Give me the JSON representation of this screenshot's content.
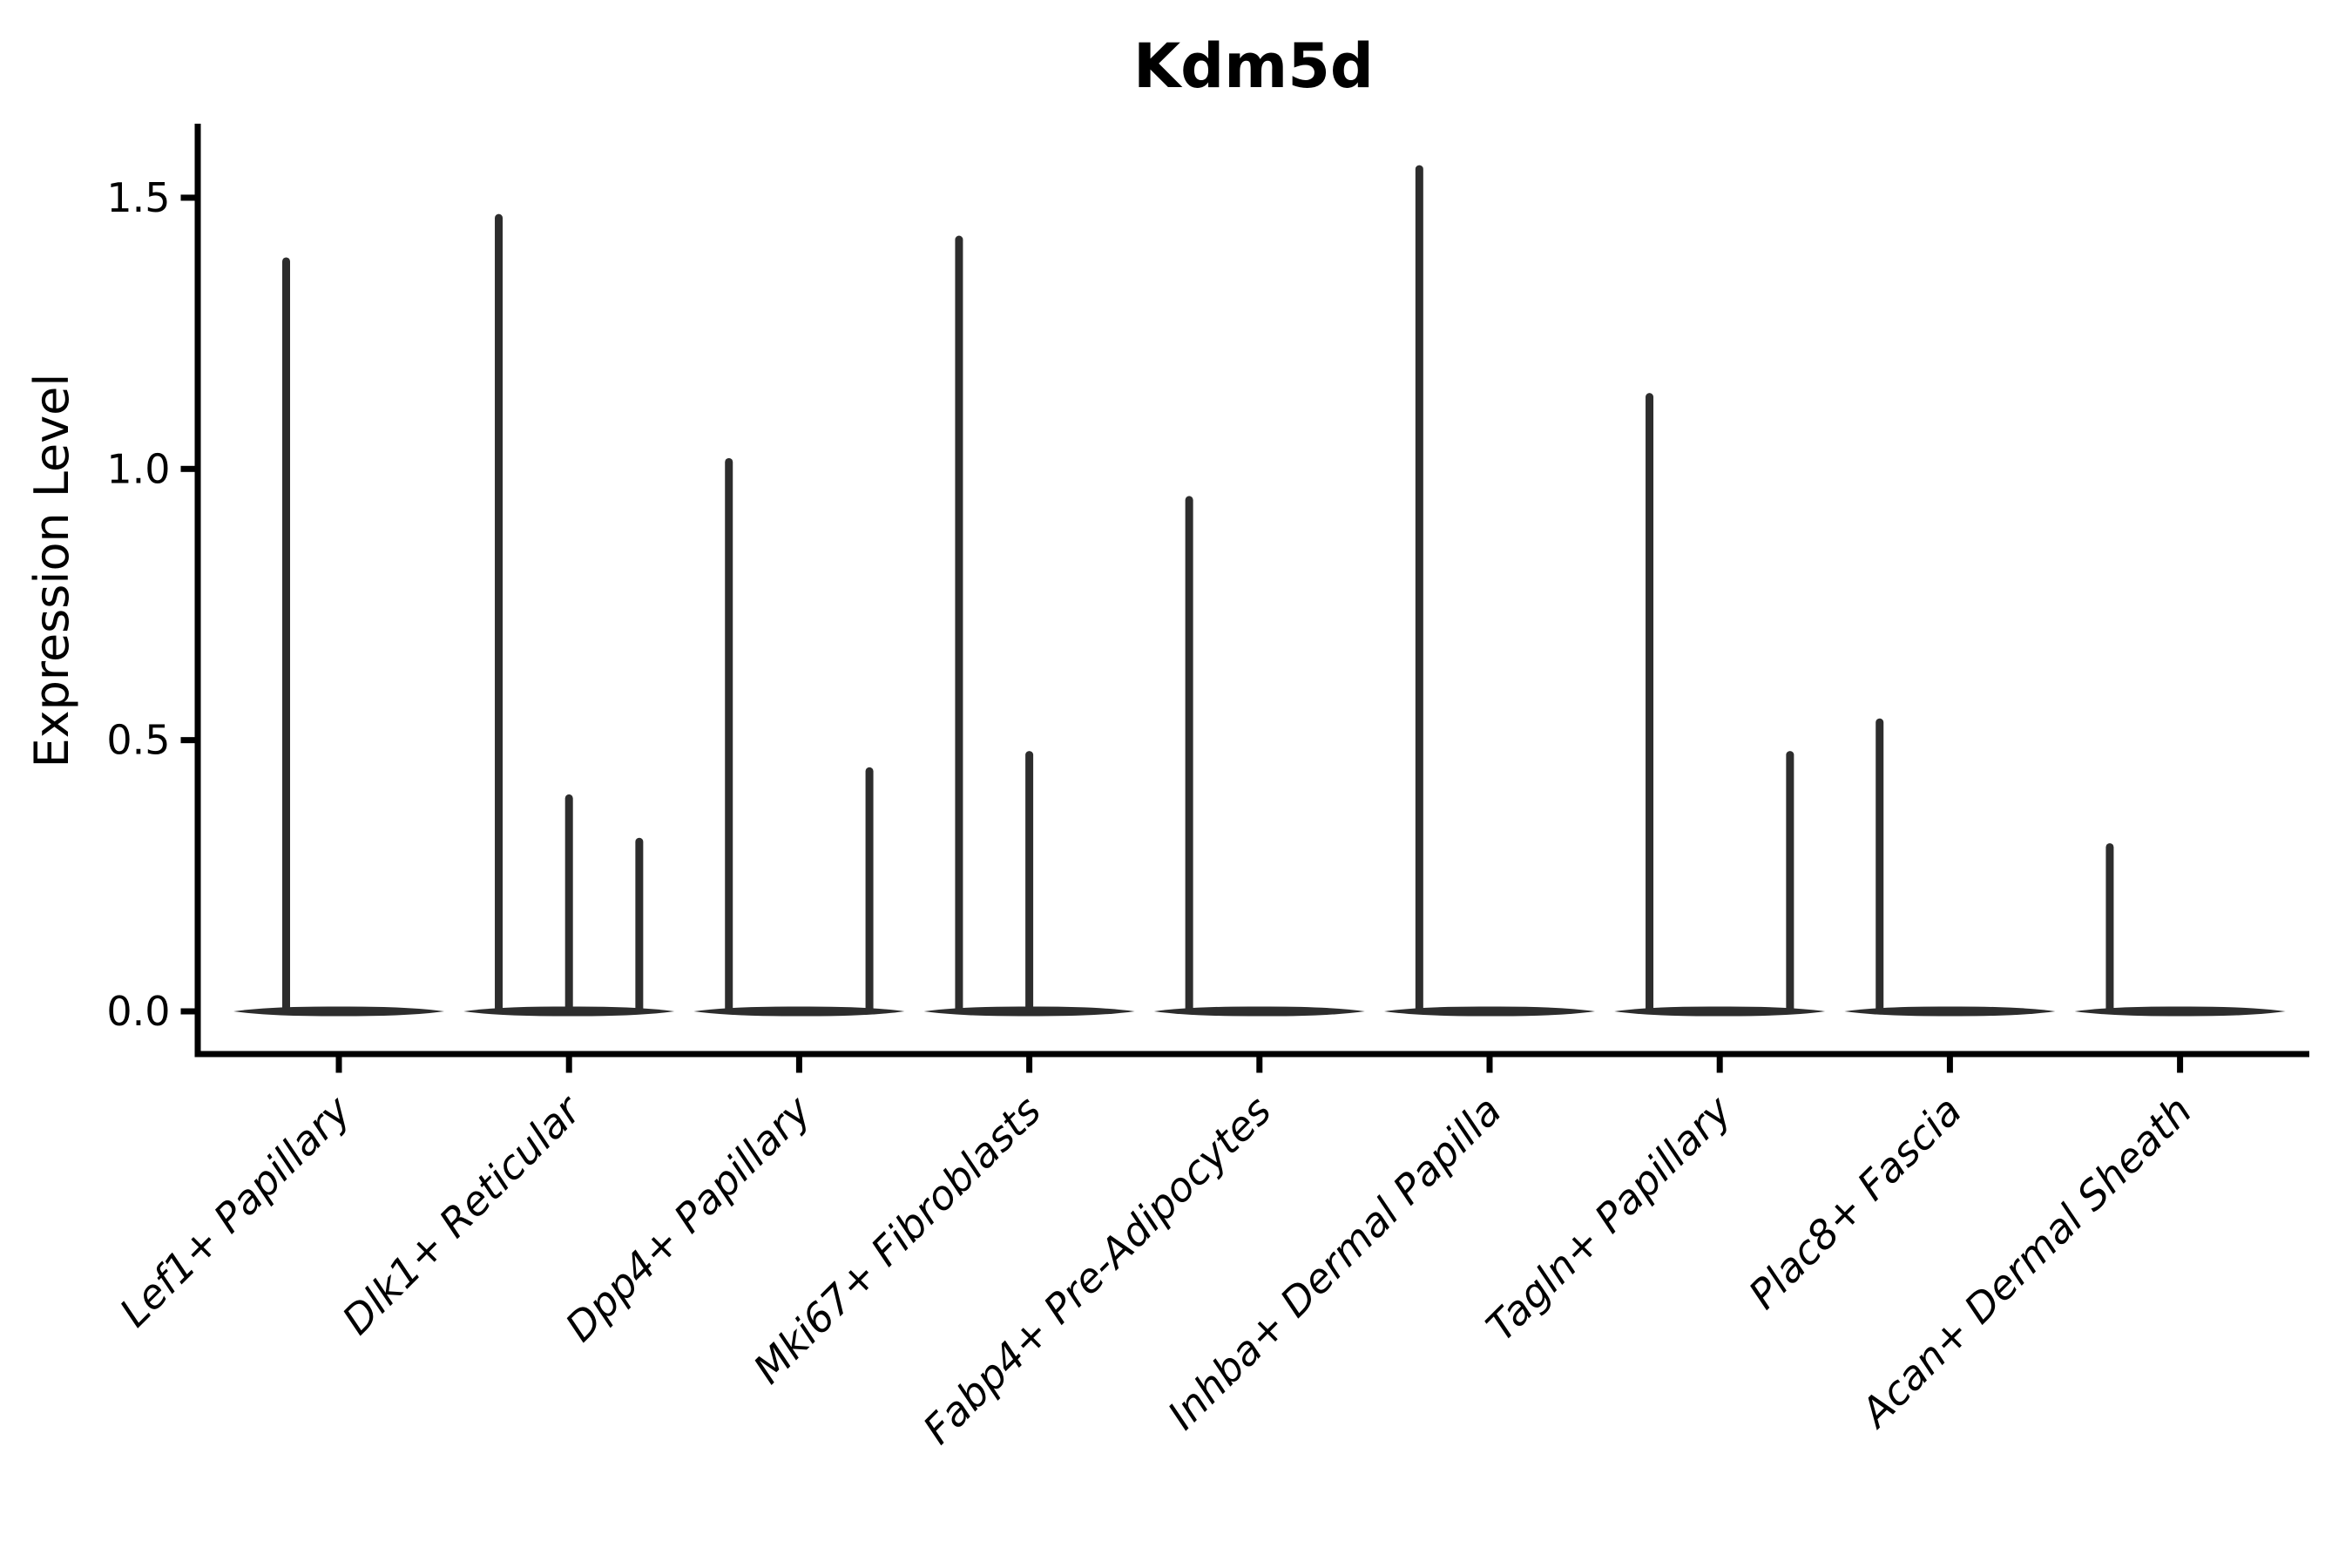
{
  "chart_data": {
    "type": "violin",
    "title": "Kdm5d",
    "xlabel": "",
    "ylabel": "Expression Level",
    "ylim": [
      0,
      1.62
    ],
    "yticks": [
      0.0,
      0.5,
      1.0,
      1.5
    ],
    "ytick_labels": [
      "0.0",
      "0.5",
      "1.0",
      "1.5"
    ],
    "grid": false,
    "legend": "none",
    "categories": [
      "Lef1+ Papillary",
      "Dlk1+ Reticular",
      "Dpp4+ Papillary",
      "Mki67+ Fibroblasts",
      "Fabp4+ Pre-Adipocytes",
      "Inhba+ Dermal Papilla",
      "Tagln+ Papillary",
      "Plac8+ Fascia",
      "Acan+ Dermal Sheath"
    ],
    "series": [
      {
        "category": "Lef1+ Papillary",
        "n_groups": 2,
        "violins": [
          {
            "group": 1,
            "max": 1.39
          }
        ]
      },
      {
        "category": "Dlk1+ Reticular",
        "n_groups": 3,
        "violins": [
          {
            "group": 1,
            "max": 1.47
          },
          {
            "group": 2,
            "max": 0.4
          },
          {
            "group": 3,
            "max": 0.32
          }
        ]
      },
      {
        "category": "Dpp4+ Papillary",
        "n_groups": 3,
        "violins": [
          {
            "group": 1,
            "max": 1.02
          },
          {
            "group": 3,
            "max": 0.45
          }
        ]
      },
      {
        "category": "Mki67+ Fibroblasts",
        "n_groups": 3,
        "violins": [
          {
            "group": 1,
            "max": 1.43
          },
          {
            "group": 2,
            "max": 0.48
          }
        ]
      },
      {
        "category": "Fabp4+ Pre-Adipocytes",
        "n_groups": 3,
        "violins": [
          {
            "group": 1,
            "max": 0.95
          }
        ]
      },
      {
        "category": "Inhba+ Dermal Papilla",
        "n_groups": 3,
        "violins": [
          {
            "group": 1,
            "max": 1.56
          }
        ]
      },
      {
        "category": "Tagln+ Papillary",
        "n_groups": 3,
        "violins": [
          {
            "group": 1,
            "max": 1.14
          },
          {
            "group": 3,
            "max": 0.48
          }
        ]
      },
      {
        "category": "Plac8+ Fascia",
        "n_groups": 3,
        "violins": [
          {
            "group": 1,
            "max": 0.54
          }
        ]
      },
      {
        "category": "Acan+ Dermal Sheath",
        "n_groups": 3,
        "violins": [
          {
            "group": 1,
            "max": 0.31
          }
        ]
      }
    ],
    "colors": {
      "violin": "#2d2d2d",
      "axis": "#000000",
      "text": "#000000",
      "background": "#ffffff"
    }
  }
}
